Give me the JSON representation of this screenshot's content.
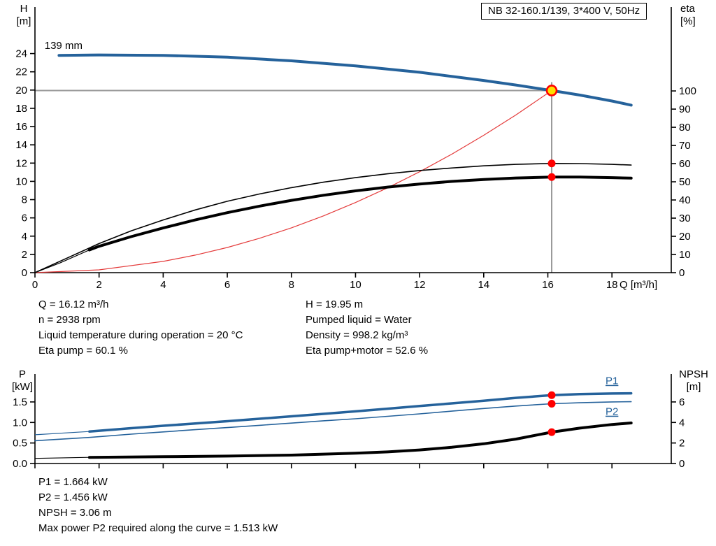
{
  "title_box": "NB 32-160.1/139, 3*400 V, 50Hz",
  "axis_corner_labels": {
    "h": [
      "H",
      "[m]"
    ],
    "eta": [
      "eta",
      "[%]"
    ],
    "q": "Q [m³/h]",
    "p": [
      "P",
      "[kW]"
    ],
    "npsh": [
      "NPSH",
      "[m]"
    ]
  },
  "operating_info": {
    "left": [
      "Q = 16.12 m³/h",
      "n = 2938 rpm",
      "Liquid temperature during operation = 20 °C",
      "Eta pump = 60.1 %"
    ],
    "right": [
      "H = 19.95 m",
      "Pumped liquid = Water",
      "Density = 998.2 kg/m³",
      "Eta pump+motor = 52.6 %"
    ]
  },
  "results": [
    "P1 = 1.664 kW",
    "P2 = 1.456 kW",
    "NPSH = 3.06 m",
    "Max power P2 required along the curve = 1.513 kW"
  ],
  "colors": {
    "curve_blue": "#25629b",
    "curve_black": "#000000",
    "system_red": "#e43b3b",
    "marker_red": "#ff0000",
    "duty_yellow": "#ffe000",
    "crosshair_gray": "#9a9a9a"
  },
  "chart_data": [
    {
      "id": "hq",
      "type": "line",
      "title": "NB 32-160.1/139, 3*400 V, 50Hz",
      "x_axis": {
        "label": "Q [m³/h]",
        "min": 0,
        "max": 19.85,
        "ticks": [
          {
            "v": 0,
            "t": "0"
          },
          {
            "v": 2,
            "t": "2"
          },
          {
            "v": 4,
            "t": "4"
          },
          {
            "v": 6,
            "t": "6"
          },
          {
            "v": 8,
            "t": "8"
          },
          {
            "v": 10,
            "t": "10"
          },
          {
            "v": 12,
            "t": "12"
          },
          {
            "v": 14,
            "t": "14"
          },
          {
            "v": 16,
            "t": "16"
          },
          {
            "v": 18,
            "t": "18"
          }
        ]
      },
      "y_left": {
        "label": "H [m]",
        "min": 0,
        "max": 29.1,
        "ticks": [
          {
            "v": 0,
            "t": "0"
          },
          {
            "v": 2,
            "t": "2"
          },
          {
            "v": 4,
            "t": "4"
          },
          {
            "v": 6,
            "t": "6"
          },
          {
            "v": 8,
            "t": "8"
          },
          {
            "v": 10,
            "t": "10"
          },
          {
            "v": 12,
            "t": "12"
          },
          {
            "v": 14,
            "t": "14"
          },
          {
            "v": 16,
            "t": "16"
          },
          {
            "v": 18,
            "t": "18"
          },
          {
            "v": 20,
            "t": "20"
          },
          {
            "v": 22,
            "t": "22"
          },
          {
            "v": 24,
            "t": "24"
          }
        ]
      },
      "y_right": {
        "label": "eta [%]",
        "min": 0,
        "max": 146.2,
        "ticks": [
          {
            "v": 0,
            "t": "0"
          },
          {
            "v": 10,
            "t": "10"
          },
          {
            "v": 20,
            "t": "20"
          },
          {
            "v": 30,
            "t": "30"
          },
          {
            "v": 40,
            "t": "40"
          },
          {
            "v": 50,
            "t": "50"
          },
          {
            "v": 60,
            "t": "60"
          },
          {
            "v": 70,
            "t": "70"
          },
          {
            "v": 80,
            "t": "80"
          },
          {
            "v": 90,
            "t": "90"
          },
          {
            "v": 100,
            "t": "100"
          }
        ]
      },
      "series": [
        {
          "name": "system-curve",
          "axis": "left",
          "color": "#e43b3b",
          "width": 1.2,
          "points": [
            [
              0,
              0
            ],
            [
              2,
              0.31
            ],
            [
              4,
              1.23
            ],
            [
              5,
              1.92
            ],
            [
              6,
              2.76
            ],
            [
              7,
              3.76
            ],
            [
              8,
              4.91
            ],
            [
              9,
              6.22
            ],
            [
              10,
              7.68
            ],
            [
              11,
              9.29
            ],
            [
              12,
              11.05
            ],
            [
              13,
              12.97
            ],
            [
              14,
              15.05
            ],
            [
              15,
              17.27
            ],
            [
              16.12,
              19.95
            ]
          ]
        },
        {
          "name": "eta-pump-curve",
          "axis": "right",
          "color": "#000000",
          "width": 1.6,
          "points": [
            [
              0,
              0
            ],
            [
              1,
              8
            ],
            [
              2,
              16
            ],
            [
              3,
              23
            ],
            [
              4,
              29
            ],
            [
              5,
              34.5
            ],
            [
              6,
              39.3
            ],
            [
              7,
              43.3
            ],
            [
              8,
              46.8
            ],
            [
              9,
              49.8
            ],
            [
              10,
              52.3
            ],
            [
              11,
              54.4
            ],
            [
              12,
              56.2
            ],
            [
              13,
              57.6
            ],
            [
              14,
              58.8
            ],
            [
              15,
              59.6
            ],
            [
              16.12,
              60.1
            ],
            [
              17,
              60.0
            ],
            [
              18,
              59.6
            ],
            [
              18.6,
              59.2
            ]
          ]
        },
        {
          "name": "eta-pump-motor-curve",
          "axis": "right",
          "color": "#000000",
          "width": 4,
          "lead": [
            [
              0,
              0
            ],
            [
              0.8,
              5.5
            ],
            [
              1.7,
              12.5
            ]
          ],
          "points": [
            [
              1.7,
              12.5
            ],
            [
              2,
              14.5
            ],
            [
              3,
              19.8
            ],
            [
              4,
              24.6
            ],
            [
              5,
              29
            ],
            [
              6,
              33
            ],
            [
              7,
              36.6
            ],
            [
              8,
              39.8
            ],
            [
              9,
              42.6
            ],
            [
              10,
              45
            ],
            [
              11,
              47.1
            ],
            [
              12,
              48.8
            ],
            [
              13,
              50.2
            ],
            [
              14,
              51.3
            ],
            [
              15,
              52.1
            ],
            [
              16.12,
              52.6
            ],
            [
              17,
              52.6
            ],
            [
              18,
              52.3
            ],
            [
              18.6,
              52.0
            ]
          ]
        },
        {
          "name": "pump-curve-139mm",
          "axis": "left",
          "color": "#25629b",
          "width": 4,
          "points": [
            [
              0.75,
              23.8
            ],
            [
              2,
              23.85
            ],
            [
              4,
              23.8
            ],
            [
              6,
              23.6
            ],
            [
              8,
              23.2
            ],
            [
              10,
              22.65
            ],
            [
              12,
              21.95
            ],
            [
              14,
              21.05
            ],
            [
              15,
              20.55
            ],
            [
              16.12,
              19.95
            ],
            [
              17,
              19.45
            ],
            [
              18,
              18.8
            ],
            [
              18.6,
              18.35
            ]
          ]
        }
      ],
      "markers": [
        {
          "x": 16.12,
          "y": 19.95,
          "axis": "left",
          "style": "duty-point"
        },
        {
          "x": 16.12,
          "y": 60.1,
          "axis": "right",
          "style": "red-dot"
        },
        {
          "x": 16.12,
          "y": 52.6,
          "axis": "right",
          "style": "red-dot"
        }
      ],
      "crosshair": {
        "x": 16.12,
        "y": 19.95
      },
      "annotations": [
        {
          "text": "139 mm",
          "x": 0.3,
          "y": 24.5,
          "axis": "left",
          "color": "#000000",
          "underline": false
        }
      ],
      "duty_point": {
        "q": 16.12,
        "h": 19.95,
        "eta_pump": 60.1,
        "eta_pump_motor": 52.6
      }
    },
    {
      "id": "p",
      "type": "line",
      "title": "Power and NPSH curves",
      "x_axis": {
        "label": "",
        "min": 0,
        "max": 19.85,
        "ticks": [
          {
            "v": 0,
            "t": ""
          },
          {
            "v": 2,
            "t": ""
          },
          {
            "v": 4,
            "t": ""
          },
          {
            "v": 6,
            "t": ""
          },
          {
            "v": 8,
            "t": ""
          },
          {
            "v": 10,
            "t": ""
          },
          {
            "v": 12,
            "t": ""
          },
          {
            "v": 14,
            "t": ""
          },
          {
            "v": 16,
            "t": ""
          },
          {
            "v": 18,
            "t": ""
          }
        ]
      },
      "y_left": {
        "label": "P [kW]",
        "min": 0,
        "max": 2.18,
        "ticks": [
          {
            "v": 0,
            "t": "0.0"
          },
          {
            "v": 0.5,
            "t": "0.5"
          },
          {
            "v": 1.0,
            "t": "1.0"
          },
          {
            "v": 1.5,
            "t": "1.5"
          }
        ]
      },
      "y_right": {
        "label": "NPSH [m]",
        "min": 0,
        "max": 8.72,
        "ticks": [
          {
            "v": 0,
            "t": "0"
          },
          {
            "v": 2,
            "t": "2"
          },
          {
            "v": 4,
            "t": "4"
          },
          {
            "v": 6,
            "t": "6"
          }
        ]
      },
      "series": [
        {
          "name": "npsh-curve",
          "axis": "right",
          "color": "#000000",
          "width": 4,
          "lead": [
            [
              0,
              0.5
            ],
            [
              1.7,
              0.6
            ]
          ],
          "points": [
            [
              1.7,
              0.6
            ],
            [
              4,
              0.66
            ],
            [
              6,
              0.72
            ],
            [
              8,
              0.82
            ],
            [
              10,
              1.0
            ],
            [
              11,
              1.13
            ],
            [
              12,
              1.32
            ],
            [
              13,
              1.58
            ],
            [
              14,
              1.92
            ],
            [
              15,
              2.38
            ],
            [
              16.12,
              3.06
            ],
            [
              17,
              3.45
            ],
            [
              18,
              3.8
            ],
            [
              18.6,
              3.95
            ]
          ]
        },
        {
          "name": "p2-curve",
          "axis": "left",
          "color": "#25629b",
          "width": 1.6,
          "points": [
            [
              0,
              0.555
            ],
            [
              1.7,
              0.635
            ],
            [
              3,
              0.715
            ],
            [
              4,
              0.77
            ],
            [
              5,
              0.825
            ],
            [
              6,
              0.875
            ],
            [
              7,
              0.93
            ],
            [
              8,
              0.985
            ],
            [
              9,
              1.04
            ],
            [
              10,
              1.09
            ],
            [
              11,
              1.15
            ],
            [
              12,
              1.21
            ],
            [
              13,
              1.275
            ],
            [
              14,
              1.34
            ],
            [
              15,
              1.4
            ],
            [
              16.12,
              1.456
            ],
            [
              17,
              1.48
            ],
            [
              18,
              1.5
            ],
            [
              18.6,
              1.505
            ]
          ]
        },
        {
          "name": "p1-curve",
          "axis": "left",
          "color": "#25629b",
          "width": 3.5,
          "lead": [
            [
              0,
              0.7
            ],
            [
              1.7,
              0.78
            ]
          ],
          "points": [
            [
              1.7,
              0.78
            ],
            [
              3,
              0.86
            ],
            [
              4,
              0.92
            ],
            [
              5,
              0.975
            ],
            [
              6,
              1.03
            ],
            [
              7,
              1.09
            ],
            [
              8,
              1.15
            ],
            [
              9,
              1.21
            ],
            [
              10,
              1.27
            ],
            [
              11,
              1.335
            ],
            [
              12,
              1.4
            ],
            [
              13,
              1.465
            ],
            [
              14,
              1.53
            ],
            [
              15,
              1.6
            ],
            [
              16.12,
              1.664
            ],
            [
              17,
              1.69
            ],
            [
              18,
              1.705
            ],
            [
              18.6,
              1.71
            ]
          ]
        }
      ],
      "markers": [
        {
          "x": 16.12,
          "y": 1.664,
          "axis": "left",
          "style": "red-dot"
        },
        {
          "x": 16.12,
          "y": 1.456,
          "axis": "left",
          "style": "red-dot"
        },
        {
          "x": 16.12,
          "y": 3.06,
          "axis": "right",
          "style": "red-dot"
        }
      ],
      "annotations": [
        {
          "text": "P1",
          "x": 17.8,
          "y": 1.93,
          "axis": "left",
          "color": "#25629b",
          "underline": true
        },
        {
          "text": "P2",
          "x": 17.8,
          "y": 1.18,
          "axis": "left",
          "color": "#25629b",
          "underline": true
        }
      ],
      "duty_point": {
        "q": 16.12,
        "p1": 1.664,
        "p2": 1.456,
        "npsh": 3.06
      }
    }
  ]
}
